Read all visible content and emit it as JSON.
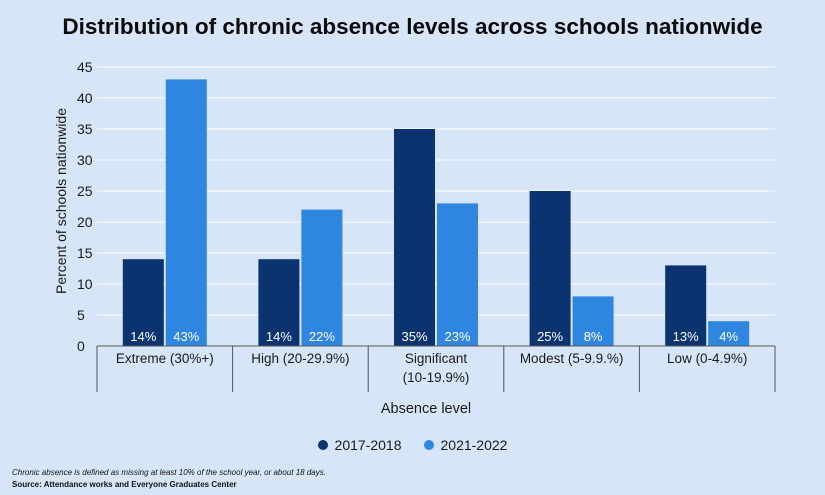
{
  "chart_data": {
    "type": "bar",
    "title": "Distribution of chronic absence levels across schools nationwide",
    "xlabel": "Absence level",
    "ylabel": "Percent of schools nationwide",
    "ylim": [
      0,
      45
    ],
    "yticks": [
      "0",
      "5",
      "10",
      "15",
      "20",
      "25",
      "30",
      "35",
      "40",
      "45"
    ],
    "categories": [
      [
        "Extreme (30%+)"
      ],
      [
        "High (20-29.9%)"
      ],
      [
        "Significant",
        "(10-19.9%)"
      ],
      [
        "Modest (5-9.9.%)"
      ],
      [
        "Low (0-4.9%)"
      ]
    ],
    "series": [
      {
        "name": "2017-2018",
        "values": [
          14,
          14,
          35,
          25,
          13
        ],
        "labels": [
          "14%",
          "14%",
          "35%",
          "25%",
          "13%"
        ]
      },
      {
        "name": "2021-2022",
        "values": [
          43,
          22,
          23,
          8,
          4
        ],
        "labels": [
          "43%",
          "22%",
          "23%",
          "8%",
          "4%"
        ]
      }
    ],
    "colors": [
      "#0b3370",
      "#2f86e0"
    ],
    "legend_position": "bottom"
  },
  "footnote": "Chronic absence is defined as missing at least 10% of the school year, or about 18 days.",
  "source": "Source: Attendance works and Everyone Graduates Center"
}
